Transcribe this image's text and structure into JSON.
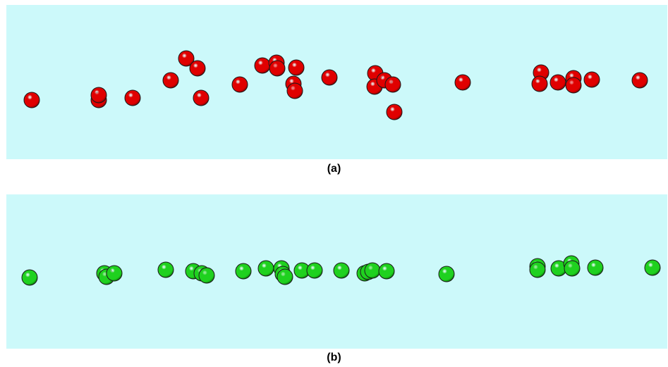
{
  "background_color": "#ccf9fa",
  "panels": [
    {
      "id": "a",
      "caption": "(a)",
      "sphere_color": "#e00000",
      "sphere_shade": "#8a0000",
      "spheres": [
        [
          45,
          142
        ],
        [
          140,
          142
        ],
        [
          140,
          135
        ],
        [
          188,
          139
        ],
        [
          242,
          114
        ],
        [
          264,
          83
        ],
        [
          280,
          97
        ],
        [
          285,
          139
        ],
        [
          340,
          120
        ],
        [
          372,
          93
        ],
        [
          392,
          89
        ],
        [
          393,
          97
        ],
        [
          420,
          96
        ],
        [
          416,
          119
        ],
        [
          418,
          129
        ],
        [
          467,
          110
        ],
        [
          532,
          104
        ],
        [
          531,
          123
        ],
        [
          545,
          114
        ],
        [
          557,
          120
        ],
        [
          559,
          159
        ],
        [
          656,
          117
        ],
        [
          767,
          103
        ],
        [
          765,
          119
        ],
        [
          791,
          117
        ],
        [
          813,
          111
        ],
        [
          813,
          121
        ],
        [
          839,
          113
        ],
        [
          907,
          114
        ]
      ]
    },
    {
      "id": "b",
      "caption": "(b)",
      "sphere_color": "#1fd11f",
      "sphere_shade": "#0b7a0b",
      "spheres": [
        [
          42,
          394
        ],
        [
          148,
          388
        ],
        [
          151,
          393
        ],
        [
          162,
          388
        ],
        [
          235,
          383
        ],
        [
          274,
          385
        ],
        [
          286,
          388
        ],
        [
          293,
          391
        ],
        [
          345,
          385
        ],
        [
          377,
          381
        ],
        [
          399,
          381
        ],
        [
          401,
          389
        ],
        [
          404,
          393
        ],
        [
          428,
          384
        ],
        [
          446,
          384
        ],
        [
          484,
          384
        ],
        [
          517,
          388
        ],
        [
          522,
          386
        ],
        [
          528,
          384
        ],
        [
          548,
          385
        ],
        [
          633,
          389
        ],
        [
          762,
          378
        ],
        [
          762,
          383
        ],
        [
          792,
          381
        ],
        [
          810,
          374
        ],
        [
          811,
          381
        ],
        [
          844,
          380
        ],
        [
          925,
          380
        ]
      ]
    }
  ]
}
